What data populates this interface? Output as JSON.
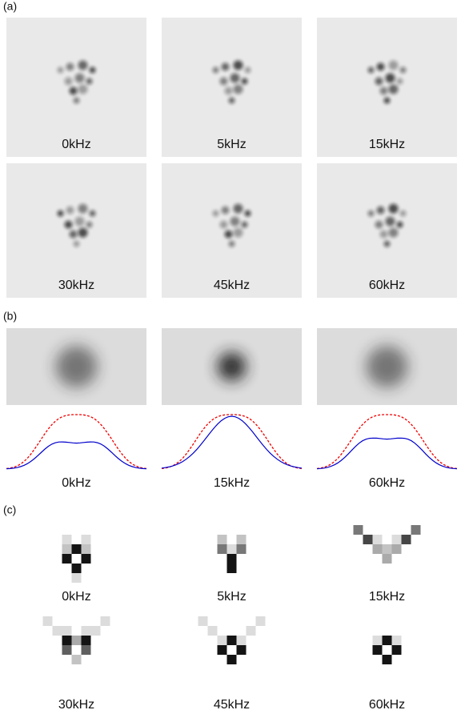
{
  "panel_a": {
    "label": "(a)",
    "frames": [
      "0kHz",
      "5kHz",
      "15kHz",
      "30kHz",
      "45kHz",
      "60kHz"
    ]
  },
  "panel_b": {
    "label": "(b)",
    "frames": [
      "0kHz",
      "15kHz",
      "60kHz"
    ]
  },
  "panel_c": {
    "label": "(c)",
    "frames": [
      "0kHz",
      "5kHz",
      "15kHz",
      "30kHz",
      "45kHz",
      "60kHz"
    ]
  }
}
